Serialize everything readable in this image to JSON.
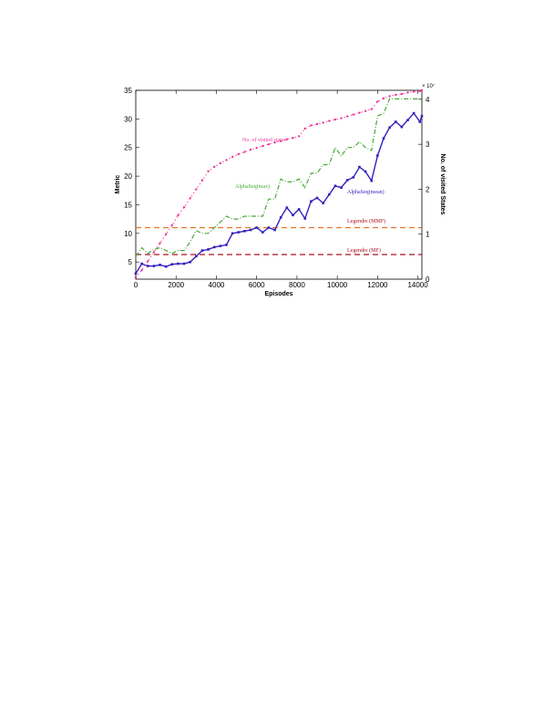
{
  "chart_data": {
    "type": "line",
    "xlabel": "Episodes",
    "ylabel": "Metric",
    "ylabel_right": "No. of visited States",
    "right_axis_multiplier": "× 10⁷",
    "xlim": [
      0,
      14200
    ],
    "ylim": [
      2,
      35
    ],
    "ylim_right": [
      0,
      4.2
    ],
    "x_ticks": [
      "0",
      "2000",
      "4000",
      "6000",
      "8000",
      "10000",
      "12000",
      "14000"
    ],
    "y_ticks": [
      "5",
      "10",
      "15",
      "20",
      "25",
      "30",
      "35"
    ],
    "y_right_ticks": [
      "0",
      "1",
      "2",
      "3",
      "4"
    ],
    "colors": {
      "mean": "#3322bb",
      "max": "#44aa33",
      "visited": "#ee3399",
      "mmf": "#e07020",
      "mf": "#aa1122"
    },
    "series": [
      {
        "name": "AlphaSeq(mean)",
        "axis": "left",
        "x": [
          0,
          300,
          600,
          900,
          1200,
          1500,
          1800,
          2100,
          2400,
          2700,
          3000,
          3300,
          3600,
          3900,
          4200,
          4500,
          4800,
          5100,
          5400,
          5700,
          6000,
          6300,
          6600,
          6900,
          7200,
          7500,
          7800,
          8100,
          8400,
          8700,
          9000,
          9300,
          9600,
          9900,
          10200,
          10500,
          10800,
          11100,
          11400,
          11700,
          12000,
          12300,
          12600,
          12900,
          13200,
          13500,
          13800,
          14100,
          14200
        ],
        "y": [
          3.0,
          4.7,
          4.3,
          4.3,
          4.5,
          4.2,
          4.6,
          4.7,
          4.7,
          5.0,
          6.0,
          7.0,
          7.2,
          7.6,
          7.8,
          8.0,
          10.0,
          10.2,
          10.4,
          10.6,
          11.0,
          10.2,
          11.0,
          10.6,
          12.8,
          14.5,
          13.2,
          14.2,
          12.6,
          15.6,
          16.2,
          15.3,
          16.8,
          18.3,
          18.0,
          19.3,
          19.8,
          21.6,
          20.8,
          19.2,
          23.6,
          26.6,
          28.5,
          29.5,
          28.6,
          29.8,
          31.0,
          29.5,
          30.5
        ]
      },
      {
        "name": "AlphaSeq(max)",
        "axis": "left",
        "x": [
          0,
          300,
          600,
          900,
          1200,
          1500,
          1800,
          2100,
          2400,
          2700,
          3000,
          3300,
          3600,
          3900,
          4200,
          4500,
          4800,
          5100,
          5400,
          5700,
          6000,
          6300,
          6600,
          6900,
          7200,
          7500,
          7800,
          8100,
          8400,
          8700,
          9000,
          9300,
          9600,
          9900,
          10200,
          10500,
          10800,
          11100,
          11400,
          11700,
          12000,
          12300,
          12600,
          12900,
          13200,
          13500,
          13800,
          14100,
          14200
        ],
        "y": [
          6.0,
          7.5,
          6.5,
          7.2,
          7.5,
          7.0,
          6.5,
          7.0,
          7.0,
          8.5,
          10.5,
          10.0,
          10.0,
          11.0,
          12.0,
          13.0,
          12.5,
          12.5,
          13.0,
          13.0,
          13.0,
          13.0,
          16.0,
          16.0,
          19.5,
          19.0,
          19.0,
          19.5,
          18.0,
          20.5,
          20.5,
          22.0,
          22.0,
          25.0,
          23.5,
          25.0,
          25.0,
          26.0,
          25.0,
          24.5,
          30.5,
          31.0,
          33.5,
          33.5,
          33.5,
          33.5,
          33.5,
          33.5,
          33.5
        ]
      },
      {
        "name": "No. of visited states",
        "axis": "right",
        "x": [
          0,
          300,
          600,
          900,
          1200,
          1500,
          1800,
          2100,
          2400,
          2700,
          3000,
          3300,
          3600,
          3900,
          4200,
          4500,
          4800,
          5100,
          5400,
          5700,
          6000,
          6300,
          6600,
          6900,
          7200,
          7500,
          7800,
          8100,
          8400,
          8700,
          9000,
          9300,
          9600,
          9900,
          10200,
          10500,
          10800,
          11100,
          11400,
          11700,
          12000,
          12300,
          12600,
          12900,
          13200,
          13500,
          13800,
          14100,
          14200
        ],
        "y": [
          0.03,
          0.2,
          0.4,
          0.6,
          0.8,
          1.0,
          1.2,
          1.42,
          1.6,
          1.8,
          2.0,
          2.2,
          2.4,
          2.5,
          2.58,
          2.65,
          2.72,
          2.78,
          2.83,
          2.88,
          2.92,
          2.96,
          3.0,
          3.04,
          3.07,
          3.11,
          3.14,
          3.18,
          3.35,
          3.42,
          3.45,
          3.48,
          3.52,
          3.55,
          3.58,
          3.62,
          3.66,
          3.7,
          3.74,
          3.78,
          3.95,
          4.02,
          4.07,
          4.1,
          4.12,
          4.15,
          4.17,
          4.18,
          4.2
        ]
      }
    ],
    "hlines": [
      {
        "name": "Legendre (MMF)",
        "y": 11.0
      },
      {
        "name": "Legendre (MF)",
        "y": 6.3
      }
    ],
    "annotations": {
      "visited": "No. of visited states",
      "max": "AlphaSeq(max)",
      "mean": "AlphaSeq(mean)",
      "mmf": "Legendre (MMF)",
      "mf": "Legendre (MF)"
    }
  }
}
